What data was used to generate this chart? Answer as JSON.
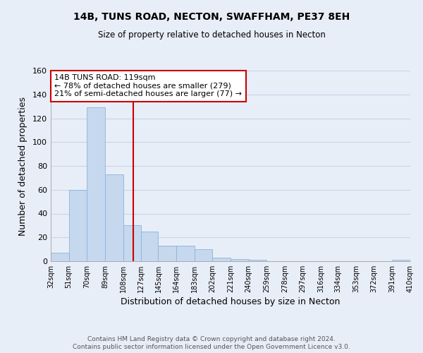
{
  "title": "14B, TUNS ROAD, NECTON, SWAFFHAM, PE37 8EH",
  "subtitle": "Size of property relative to detached houses in Necton",
  "xlabel": "Distribution of detached houses by size in Necton",
  "ylabel": "Number of detached properties",
  "bin_edges": [
    32,
    51,
    70,
    89,
    108,
    127,
    145,
    164,
    183,
    202,
    221,
    240,
    259,
    278,
    297,
    316,
    334,
    353,
    372,
    391,
    410
  ],
  "bar_heights": [
    7,
    60,
    129,
    73,
    30,
    25,
    13,
    13,
    10,
    3,
    2,
    1,
    0,
    0,
    0,
    0,
    0,
    0,
    0,
    1
  ],
  "bar_color": "#c5d8ee",
  "bar_edge_color": "#8ab4d8",
  "vline_x": 119,
  "vline_color": "#cc0000",
  "annotation_text": "14B TUNS ROAD: 119sqm\n← 78% of detached houses are smaller (279)\n21% of semi-detached houses are larger (77) →",
  "annotation_box_color": "#ffffff",
  "annotation_box_edge": "#cc0000",
  "ylim": [
    0,
    160
  ],
  "yticks": [
    0,
    20,
    40,
    60,
    80,
    100,
    120,
    140,
    160
  ],
  "footer_line1": "Contains HM Land Registry data © Crown copyright and database right 2024.",
  "footer_line2": "Contains public sector information licensed under the Open Government Licence v3.0.",
  "background_color": "#e8eef8",
  "grid_color": "#c8d4e8",
  "x_tick_labels": [
    "32sqm",
    "51sqm",
    "70sqm",
    "89sqm",
    "108sqm",
    "127sqm",
    "145sqm",
    "164sqm",
    "183sqm",
    "202sqm",
    "221sqm",
    "240sqm",
    "259sqm",
    "278sqm",
    "297sqm",
    "316sqm",
    "334sqm",
    "353sqm",
    "372sqm",
    "391sqm",
    "410sqm"
  ]
}
